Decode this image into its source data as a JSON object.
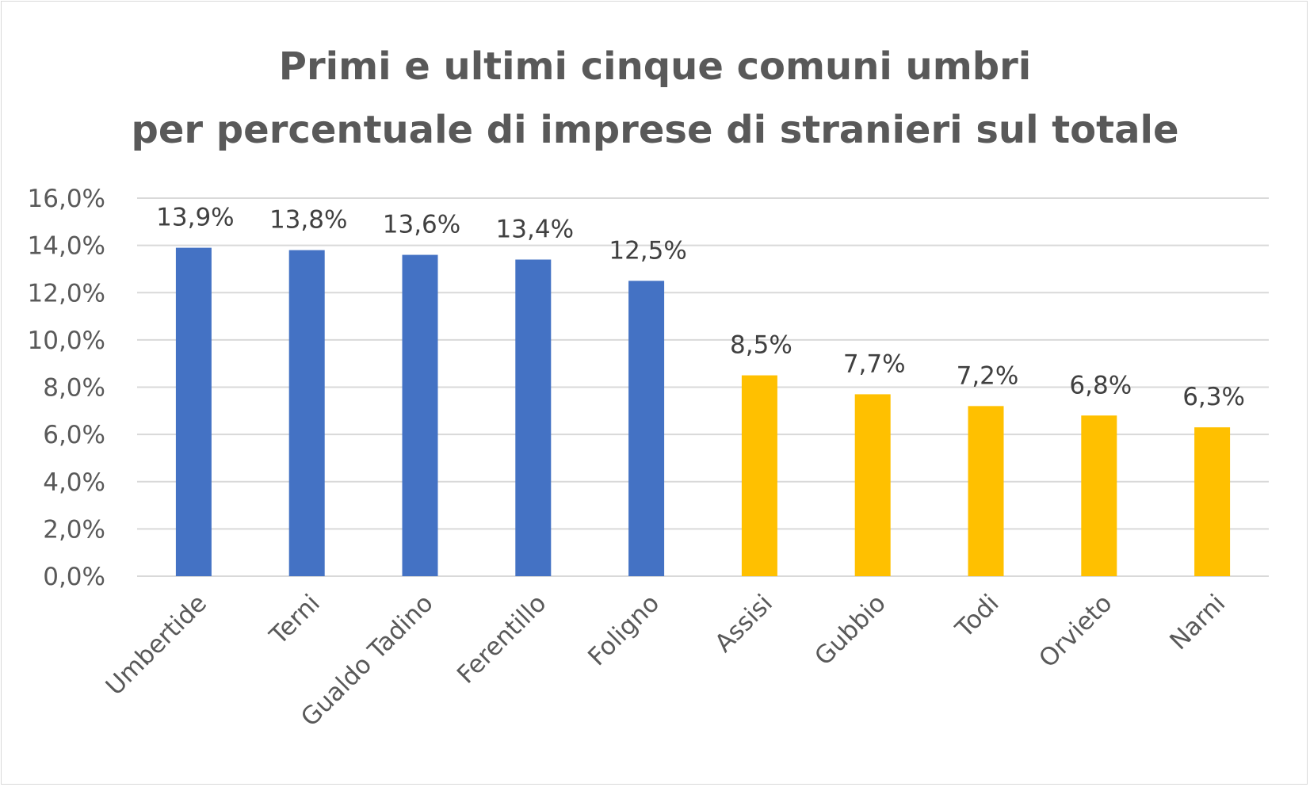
{
  "chart_data": {
    "type": "bar",
    "title": "Primi e ultimi cinque comuni umbri per percentuale di imprese di stranieri sul totale",
    "title_lines": [
      "Primi e ultimi cinque comuni umbri",
      "per percentuale di imprese di stranieri sul totale"
    ],
    "xlabel": "",
    "ylabel": "",
    "categories": [
      "Umbertide",
      "Terni",
      "Gualdo Tadino",
      "Ferentillo",
      "Foligno",
      "Assisi",
      "Gubbio",
      "Todi",
      "Orvieto",
      "Narni"
    ],
    "values": [
      13.9,
      13.8,
      13.6,
      13.4,
      12.5,
      8.5,
      7.7,
      7.2,
      6.8,
      6.3
    ],
    "data_labels": [
      "13,9%",
      "13,8%",
      "13,6%",
      "13,4%",
      "12,5%",
      "8,5%",
      "7,7%",
      "7,2%",
      "6,8%",
      "6,3%"
    ],
    "ylim": [
      0,
      16
    ],
    "yticks": [
      0,
      2,
      4,
      6,
      8,
      10,
      12,
      14,
      16
    ],
    "ytick_labels": [
      "0,0%",
      "2,0%",
      "4,0%",
      "6,0%",
      "8,0%",
      "10,0%",
      "12,0%",
      "14,0%",
      "16,0%"
    ],
    "grid": true,
    "legend": "none",
    "colors": {
      "top_five": "#4472c4",
      "bottom_five": "#ffc000",
      "gridline": "#d9d9d9",
      "axis": "#d9d9d9"
    },
    "bar_groups": [
      "top",
      "top",
      "top",
      "top",
      "top",
      "bottom",
      "bottom",
      "bottom",
      "bottom",
      "bottom"
    ]
  }
}
